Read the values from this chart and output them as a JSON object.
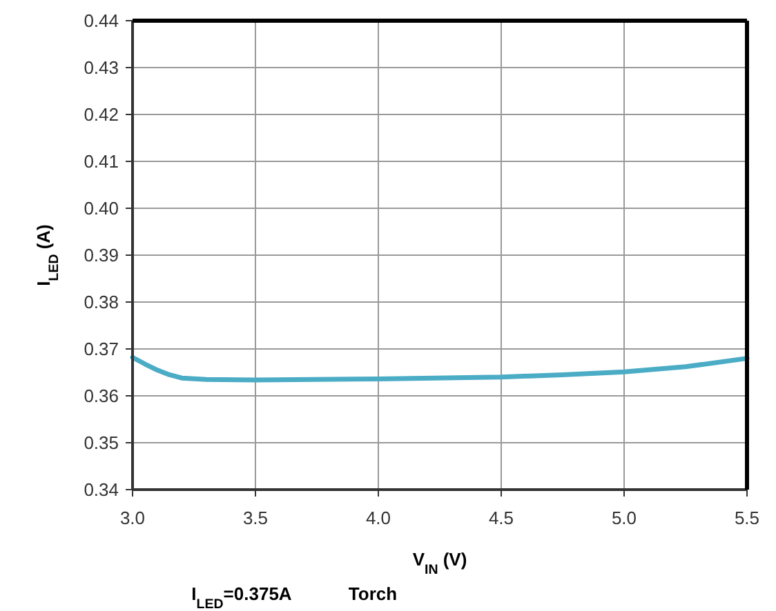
{
  "chart_data": {
    "type": "line",
    "xlabel": "V$_{IN}$  (V)",
    "ylabel": "I$_{LED}$ (A)",
    "annotations": [
      "I$_{LED}$=0.375A",
      "Torch"
    ],
    "x": [
      3.0,
      3.05,
      3.1,
      3.15,
      3.2,
      3.3,
      3.5,
      4.0,
      4.5,
      4.75,
      5.0,
      5.25,
      5.5
    ],
    "series": [
      {
        "color": "#4bacc6",
        "values": [
          0.3682,
          0.3668,
          0.3655,
          0.3645,
          0.3638,
          0.3635,
          0.3634,
          0.3636,
          0.364,
          0.3645,
          0.3651,
          0.3662,
          0.368
        ]
      }
    ],
    "xlim": [
      3.0,
      5.5
    ],
    "xticks": [
      {
        "value": 3.0,
        "label": "3.0"
      },
      {
        "value": 3.5,
        "label": "3.5"
      },
      {
        "value": 4.0,
        "label": "4.0"
      },
      {
        "value": 4.5,
        "label": "4.5"
      },
      {
        "value": 5.0,
        "label": "5.0"
      },
      {
        "value": 5.5,
        "label": "5.5"
      }
    ],
    "ylim": [
      0.34,
      0.44
    ],
    "yticks": [
      0.34,
      0.35,
      0.36,
      0.37,
      0.38,
      0.39,
      {
        "value": 0.4,
        "label": "0.40"
      },
      0.41,
      0.42,
      0.43,
      0.44
    ],
    "grid": true,
    "marker": "none",
    "line_style": "solid"
  }
}
